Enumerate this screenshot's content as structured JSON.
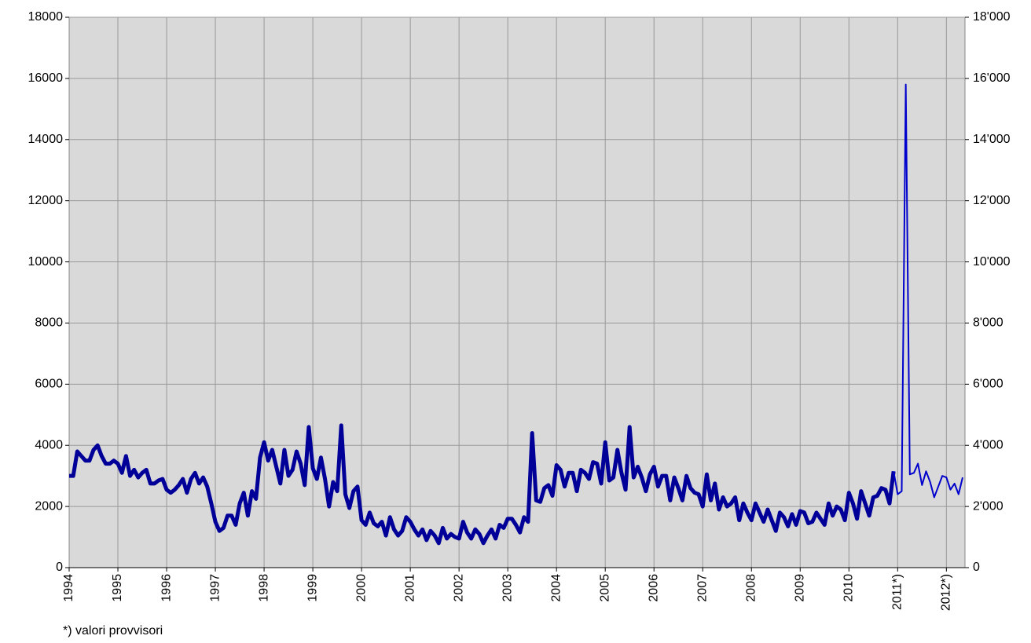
{
  "chart_data": {
    "type": "line",
    "footnote": "*) valori provvisori",
    "categories": [
      "1994",
      null,
      null,
      null,
      null,
      null,
      null,
      null,
      null,
      null,
      null,
      null,
      "1995",
      null,
      null,
      null,
      null,
      null,
      null,
      null,
      null,
      null,
      null,
      null,
      "1996",
      null,
      null,
      null,
      null,
      null,
      null,
      null,
      null,
      null,
      null,
      null,
      "1997",
      null,
      null,
      null,
      null,
      null,
      null,
      null,
      null,
      null,
      null,
      null,
      "1998",
      null,
      null,
      null,
      null,
      null,
      null,
      null,
      null,
      null,
      null,
      null,
      "1999",
      null,
      null,
      null,
      null,
      null,
      null,
      null,
      null,
      null,
      null,
      null,
      "2000",
      null,
      null,
      null,
      null,
      null,
      null,
      null,
      null,
      null,
      null,
      null,
      "2001",
      null,
      null,
      null,
      null,
      null,
      null,
      null,
      null,
      null,
      null,
      null,
      "2002",
      null,
      null,
      null,
      null,
      null,
      null,
      null,
      null,
      null,
      null,
      null,
      "2003",
      null,
      null,
      null,
      null,
      null,
      null,
      null,
      null,
      null,
      null,
      null,
      "2004",
      null,
      null,
      null,
      null,
      null,
      null,
      null,
      null,
      null,
      null,
      null,
      "2005",
      null,
      null,
      null,
      null,
      null,
      null,
      null,
      null,
      null,
      null,
      null,
      "2006",
      null,
      null,
      null,
      null,
      null,
      null,
      null,
      null,
      null,
      null,
      null,
      "2007",
      null,
      null,
      null,
      null,
      null,
      null,
      null,
      null,
      null,
      null,
      null,
      "2008",
      null,
      null,
      null,
      null,
      null,
      null,
      null,
      null,
      null,
      null,
      null,
      "2009",
      null,
      null,
      null,
      null,
      null,
      null,
      null,
      null,
      null,
      null,
      null,
      "2010",
      null,
      null,
      null,
      null,
      null,
      null,
      null,
      null,
      null,
      null,
      null,
      "2011*)",
      null,
      null,
      null,
      null,
      null,
      null,
      null,
      null,
      null,
      null,
      null,
      "2012*)",
      null,
      null,
      null,
      null
    ],
    "series": [
      {
        "color": "#000099",
        "line_width": 5,
        "values": [
          3000,
          3000,
          3800,
          3650,
          3500,
          3500,
          3850,
          4000,
          3650,
          3400,
          3400,
          3500,
          3400,
          3100,
          3650,
          3000,
          3200,
          2950,
          3100,
          3200,
          2750,
          2750,
          2850,
          2900,
          2550,
          2450,
          2550,
          2700,
          2900,
          2450,
          2900,
          3100,
          2750,
          2950,
          2650,
          2100,
          1500,
          1200,
          1300,
          1700,
          1700,
          1400,
          2100,
          2450,
          1700,
          2500,
          2250,
          3600,
          4100,
          3500,
          3850,
          3300,
          2750,
          3850,
          3000,
          3200,
          3800,
          3400,
          2700,
          4600,
          3250,
          2900,
          3600,
          2900,
          2000,
          2800,
          2500,
          4650,
          2400,
          1950,
          2500,
          2650,
          1550,
          1400,
          1800,
          1450,
          1350,
          1500,
          1050,
          1650,
          1250,
          1050,
          1200,
          1650,
          1500,
          1250,
          1050,
          1250,
          900,
          1200,
          1050,
          800,
          1300,
          950,
          1100,
          1000,
          950,
          1500,
          1150,
          950,
          1250,
          1100,
          800,
          1050,
          1250,
          950,
          1400,
          1300,
          1600,
          1600,
          1400,
          1150,
          1650,
          1500,
          4400,
          2200,
          2150,
          2600,
          2700,
          2350,
          3350,
          3200,
          2650,
          3100,
          3100,
          2500,
          3200,
          3100,
          2900,
          3450,
          3400,
          2750,
          4100,
          2850,
          2950,
          3850,
          3100,
          2550,
          4600,
          2950,
          3300,
          2950,
          2500,
          3050,
          3300,
          2650,
          3000,
          3000,
          2200,
          2950,
          2600,
          2200,
          3000,
          2600,
          2450,
          2400,
          2000,
          3050,
          2200,
          2750,
          1900,
          2300,
          2000,
          2100,
          2300,
          1550,
          2100,
          1800,
          1550,
          2100,
          1800,
          1500,
          1900,
          1550,
          1200,
          1800,
          1650,
          1350,
          1750,
          1400,
          1850,
          1800,
          1450,
          1500,
          1800,
          1600,
          1400,
          2100,
          1700,
          2000,
          1900,
          1550,
          2450,
          2100,
          1600,
          2500,
          2100,
          1700,
          2300,
          2350,
          2600,
          2550,
          2100,
          3150,
          null,
          null,
          null,
          null,
          null,
          null,
          null,
          null,
          null,
          null,
          null,
          null,
          null,
          null,
          null,
          null,
          null
        ]
      },
      {
        "color": "#0000cc",
        "line_width": 2,
        "values": [
          null,
          null,
          null,
          null,
          null,
          null,
          null,
          null,
          null,
          null,
          null,
          null,
          null,
          null,
          null,
          null,
          null,
          null,
          null,
          null,
          null,
          null,
          null,
          null,
          null,
          null,
          null,
          null,
          null,
          null,
          null,
          null,
          null,
          null,
          null,
          null,
          null,
          null,
          null,
          null,
          null,
          null,
          null,
          null,
          null,
          null,
          null,
          null,
          null,
          null,
          null,
          null,
          null,
          null,
          null,
          null,
          null,
          null,
          null,
          null,
          null,
          null,
          null,
          null,
          null,
          null,
          null,
          null,
          null,
          null,
          null,
          null,
          null,
          null,
          null,
          null,
          null,
          null,
          null,
          null,
          null,
          null,
          null,
          null,
          null,
          null,
          null,
          null,
          null,
          null,
          null,
          null,
          null,
          null,
          null,
          null,
          null,
          null,
          null,
          null,
          null,
          null,
          null,
          null,
          null,
          null,
          null,
          null,
          null,
          null,
          null,
          null,
          null,
          null,
          null,
          null,
          null,
          null,
          null,
          null,
          null,
          null,
          null,
          null,
          null,
          null,
          null,
          null,
          null,
          null,
          null,
          null,
          null,
          null,
          null,
          null,
          null,
          null,
          null,
          null,
          null,
          null,
          null,
          null,
          null,
          null,
          null,
          null,
          null,
          null,
          null,
          null,
          null,
          null,
          null,
          null,
          null,
          null,
          null,
          null,
          null,
          null,
          null,
          null,
          null,
          null,
          null,
          null,
          null,
          null,
          null,
          null,
          null,
          null,
          null,
          null,
          null,
          null,
          null,
          null,
          null,
          null,
          null,
          null,
          null,
          null,
          null,
          null,
          null,
          null,
          null,
          null,
          null,
          null,
          null,
          null,
          null,
          null,
          null,
          null,
          null,
          null,
          null,
          3150,
          2400,
          2500,
          15800,
          3050,
          3100,
          3400,
          2700,
          3150,
          2800,
          2300,
          2650,
          3000,
          2950,
          2550,
          2750,
          2400,
          2950
        ]
      }
    ],
    "ylim": [
      0,
      18000
    ],
    "yticks": [
      0,
      2000,
      4000,
      6000,
      8000,
      10000,
      12000,
      14000,
      16000,
      18000
    ],
    "y2lim": [
      0,
      18000
    ],
    "y2ticks": [
      {
        "value": 0,
        "label": "0"
      },
      {
        "value": 2000,
        "label": "2'000"
      },
      {
        "value": 4000,
        "label": "4'000"
      },
      {
        "value": 6000,
        "label": "6'000"
      },
      {
        "value": 8000,
        "label": "8'000"
      },
      {
        "value": 10000,
        "label": "10'000"
      },
      {
        "value": 12000,
        "label": "12'000"
      },
      {
        "value": 14000,
        "label": "14'000"
      },
      {
        "value": 16000,
        "label": "16'000"
      },
      {
        "value": 18000,
        "label": "18'000"
      }
    ],
    "grid": true
  }
}
